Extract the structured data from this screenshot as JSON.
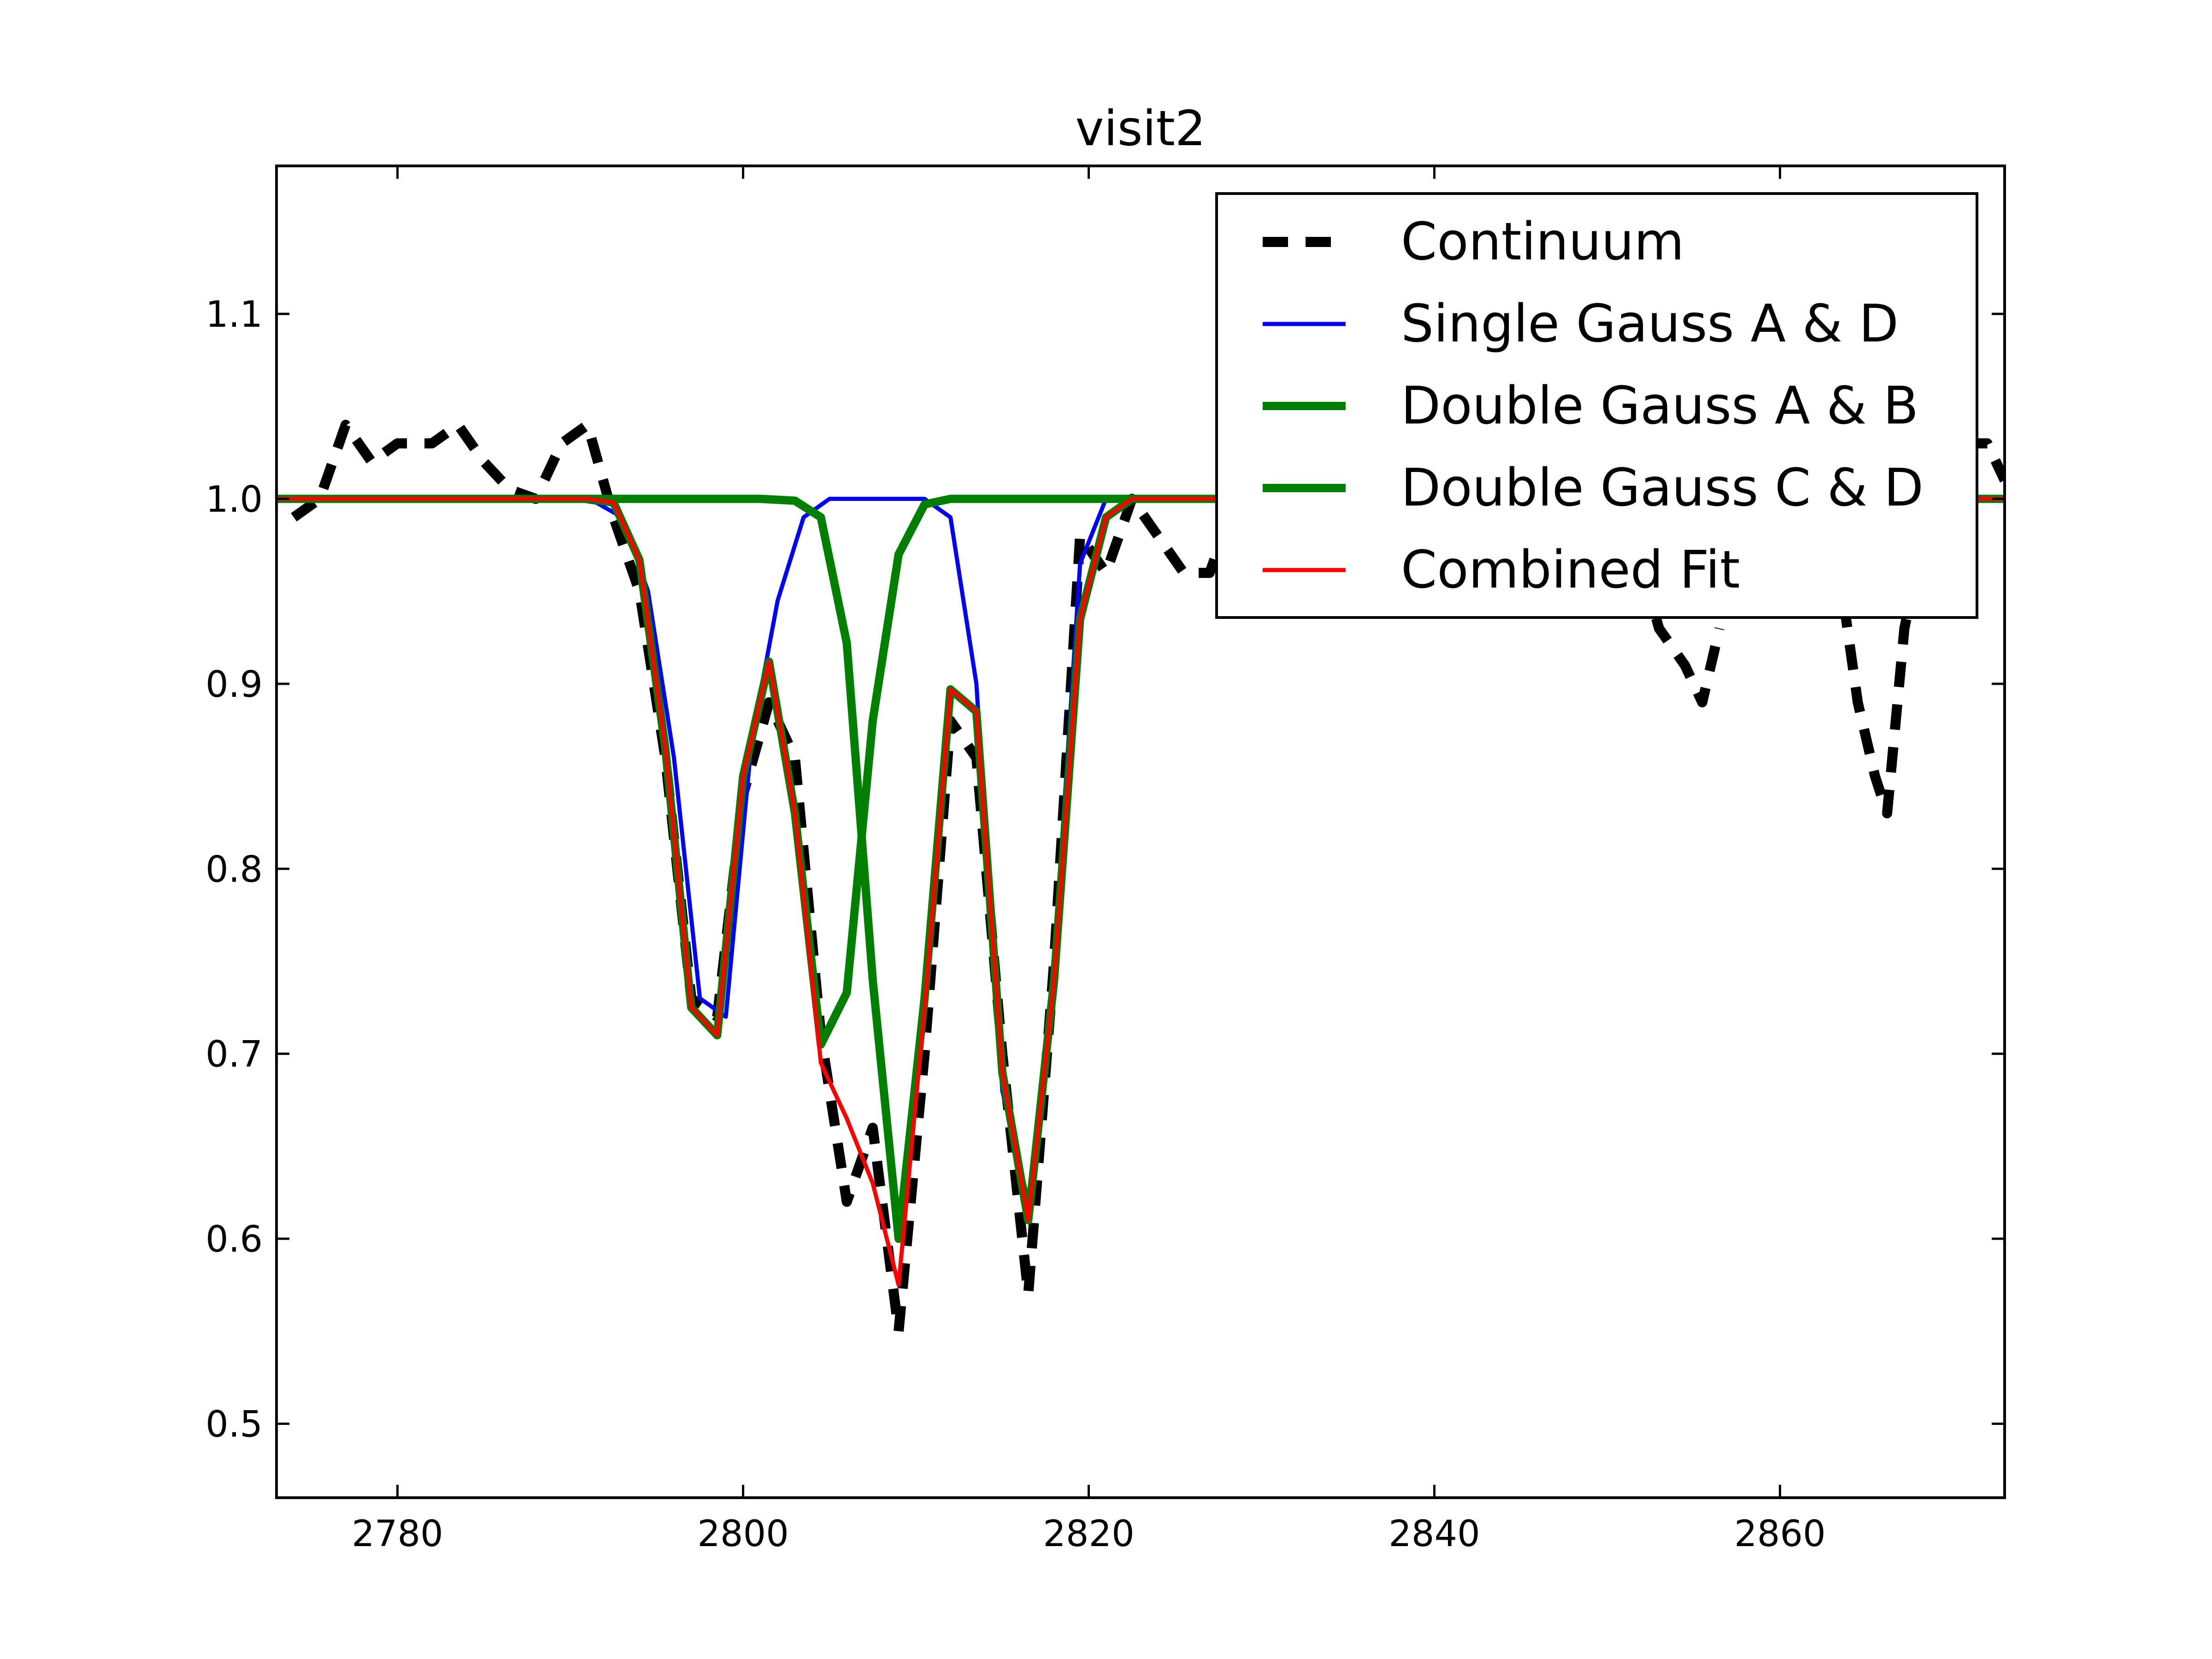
{
  "chart_data": {
    "type": "line",
    "title": "visit2",
    "xlabel": "",
    "ylabel": "",
    "xlim": [
      2773,
      2873
    ],
    "ylim": [
      0.46,
      1.18
    ],
    "xticks": [
      2780,
      2800,
      2820,
      2840,
      2860
    ],
    "yticks": [
      0.5,
      0.6,
      0.7,
      0.8,
      0.9,
      1.0,
      1.1
    ],
    "xtick_labels": [
      "2780",
      "2800",
      "2820",
      "2840",
      "2860"
    ],
    "ytick_labels": [
      "0.5",
      "0.6",
      "0.7",
      "0.8",
      "0.9",
      "1.0",
      "1.1"
    ],
    "legend_position": "top-right",
    "grid": false,
    "series": [
      {
        "name": "Continuum",
        "color": "#000000",
        "style": "dashed",
        "points": [
          [
            2774.0,
            0.99
          ],
          [
            2775.5,
            1.0
          ],
          [
            2777.0,
            1.04
          ],
          [
            2778.5,
            1.02
          ],
          [
            2780.0,
            1.03
          ],
          [
            2782.0,
            1.03
          ],
          [
            2783.5,
            1.04
          ],
          [
            2785.0,
            1.02
          ],
          [
            2786.5,
            1.005
          ],
          [
            2788.0,
            1.0
          ],
          [
            2789.5,
            1.03
          ],
          [
            2791.0,
            1.04
          ],
          [
            2792.5,
            0.99
          ],
          [
            2794.0,
            0.95
          ],
          [
            2795.5,
            0.86
          ],
          [
            2797.0,
            0.73
          ],
          [
            2798.5,
            0.72
          ],
          [
            2800.0,
            0.84
          ],
          [
            2801.5,
            0.89
          ],
          [
            2803.0,
            0.86
          ],
          [
            2804.5,
            0.71
          ],
          [
            2806.0,
            0.62
          ],
          [
            2807.5,
            0.66
          ],
          [
            2809.0,
            0.55
          ],
          [
            2810.5,
            0.7
          ],
          [
            2812.0,
            0.88
          ],
          [
            2813.5,
            0.86
          ],
          [
            2815.0,
            0.7
          ],
          [
            2816.5,
            0.57
          ],
          [
            2818.0,
            0.75
          ],
          [
            2819.5,
            0.98
          ],
          [
            2821.0,
            0.96
          ],
          [
            2822.5,
            1.0
          ],
          [
            2824.0,
            0.98
          ],
          [
            2825.5,
            0.96
          ],
          [
            2827.0,
            0.96
          ],
          [
            2828.5,
            1.0
          ],
          [
            2851.5,
            0.98
          ],
          [
            2853.0,
            0.93
          ],
          [
            2854.5,
            0.91
          ],
          [
            2855.5,
            0.89
          ],
          [
            2856.5,
            0.93
          ],
          [
            2863.0,
            0.99
          ],
          [
            2864.5,
            0.89
          ],
          [
            2865.5,
            0.85
          ],
          [
            2866.2,
            0.83
          ],
          [
            2867.2,
            0.93
          ],
          [
            2869.0,
            1.01
          ],
          [
            2870.5,
            1.03
          ],
          [
            2872.0,
            1.03
          ],
          [
            2873.0,
            1.01
          ]
        ],
        "break_x": [
          2829,
          2851,
          2857,
          2862
        ]
      },
      {
        "name": "Single Gauss A & D",
        "color": "#0000ff",
        "width": "thin",
        "points": [
          [
            2773.0,
            1.0
          ],
          [
            2790.0,
            1.0
          ],
          [
            2791.5,
            0.998
          ],
          [
            2793.0,
            0.99
          ],
          [
            2794.5,
            0.95
          ],
          [
            2796.0,
            0.86
          ],
          [
            2797.5,
            0.73
          ],
          [
            2799.0,
            0.72
          ],
          [
            2800.5,
            0.87
          ],
          [
            2802.0,
            0.945
          ],
          [
            2803.5,
            0.99
          ],
          [
            2805.0,
            1.0
          ],
          [
            2810.5,
            1.0
          ],
          [
            2812.0,
            0.99
          ],
          [
            2813.5,
            0.9
          ],
          [
            2815.0,
            0.68
          ],
          [
            2816.5,
            0.62
          ],
          [
            2818.0,
            0.75
          ],
          [
            2819.5,
            0.965
          ],
          [
            2821.0,
            1.0
          ],
          [
            2873.0,
            1.0
          ]
        ]
      },
      {
        "name": "Double Gauss A & B",
        "color": "#008000",
        "width": "thick",
        "points": [
          [
            2773.0,
            1.0
          ],
          [
            2791.0,
            1.0
          ],
          [
            2792.5,
            0.998
          ],
          [
            2794.0,
            0.967
          ],
          [
            2795.5,
            0.865
          ],
          [
            2797.0,
            0.725
          ],
          [
            2798.5,
            0.71
          ],
          [
            2800.0,
            0.85
          ],
          [
            2801.5,
            0.912
          ],
          [
            2803.0,
            0.83
          ],
          [
            2804.5,
            0.705
          ],
          [
            2806.0,
            0.733
          ],
          [
            2807.5,
            0.88
          ],
          [
            2809.0,
            0.97
          ],
          [
            2810.5,
            0.997
          ],
          [
            2812.0,
            1.0
          ],
          [
            2873.0,
            1.0
          ]
        ]
      },
      {
        "name": "Double Gauss C & D",
        "color": "#008000",
        "width": "thick",
        "points": [
          [
            2773.0,
            1.0
          ],
          [
            2801.0,
            1.0
          ],
          [
            2803.0,
            0.999
          ],
          [
            2804.5,
            0.99
          ],
          [
            2806.0,
            0.922
          ],
          [
            2807.5,
            0.74
          ],
          [
            2809.0,
            0.6
          ],
          [
            2810.5,
            0.73
          ],
          [
            2812.0,
            0.897
          ],
          [
            2813.5,
            0.885
          ],
          [
            2815.0,
            0.69
          ],
          [
            2816.5,
            0.61
          ],
          [
            2818.0,
            0.74
          ],
          [
            2819.5,
            0.935
          ],
          [
            2821.0,
            0.99
          ],
          [
            2822.5,
            1.0
          ],
          [
            2873.0,
            1.0
          ]
        ]
      },
      {
        "name": "Combined Fit",
        "color": "#ff0000",
        "width": "thin",
        "points": [
          [
            2773.0,
            1.0
          ],
          [
            2791.0,
            1.0
          ],
          [
            2792.5,
            0.998
          ],
          [
            2794.0,
            0.967
          ],
          [
            2795.5,
            0.865
          ],
          [
            2797.0,
            0.725
          ],
          [
            2798.5,
            0.71
          ],
          [
            2800.0,
            0.85
          ],
          [
            2801.5,
            0.912
          ],
          [
            2803.0,
            0.83
          ],
          [
            2804.5,
            0.695
          ],
          [
            2806.0,
            0.665
          ],
          [
            2807.5,
            0.63
          ],
          [
            2809.0,
            0.575
          ],
          [
            2810.5,
            0.725
          ],
          [
            2812.0,
            0.897
          ],
          [
            2813.5,
            0.885
          ],
          [
            2815.0,
            0.69
          ],
          [
            2816.5,
            0.61
          ],
          [
            2818.0,
            0.74
          ],
          [
            2819.5,
            0.935
          ],
          [
            2821.0,
            0.99
          ],
          [
            2822.5,
            1.0
          ],
          [
            2873.0,
            1.0
          ]
        ]
      }
    ]
  }
}
